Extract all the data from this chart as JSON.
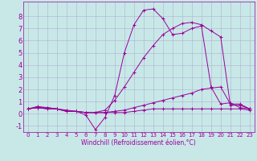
{
  "background_color": "#c8e8e8",
  "grid_color": "#b0b0d0",
  "line_color": "#990099",
  "marker": "+",
  "xlim": [
    -0.5,
    23.5
  ],
  "ylim": [
    -1.5,
    9.2
  ],
  "xticks": [
    0,
    1,
    2,
    3,
    4,
    5,
    6,
    7,
    8,
    9,
    10,
    11,
    12,
    13,
    14,
    15,
    16,
    17,
    18,
    19,
    20,
    21,
    22,
    23
  ],
  "yticks": [
    -1,
    0,
    1,
    2,
    3,
    4,
    5,
    6,
    7,
    8
  ],
  "xlabel": "Windchill (Refroidissement éolien,°C)",
  "lines": [
    [
      0.4,
      0.6,
      0.5,
      0.4,
      0.2,
      0.2,
      -0.1,
      -1.3,
      -0.3,
      1.5,
      5.0,
      7.3,
      8.5,
      8.6,
      7.8,
      6.5,
      6.6,
      7.0,
      7.2,
      2.2,
      0.8,
      0.9,
      0.5,
      0.4
    ],
    [
      0.4,
      0.5,
      0.5,
      0.4,
      0.3,
      0.2,
      0.1,
      0.1,
      0.3,
      1.1,
      2.2,
      3.4,
      4.6,
      5.6,
      6.5,
      7.0,
      7.4,
      7.5,
      7.3,
      6.8,
      6.3,
      0.7,
      0.7,
      0.4
    ],
    [
      0.4,
      0.5,
      0.4,
      0.4,
      0.2,
      0.2,
      0.1,
      0.1,
      0.1,
      0.2,
      0.3,
      0.5,
      0.7,
      0.9,
      1.1,
      1.3,
      1.5,
      1.7,
      2.0,
      2.1,
      2.2,
      0.8,
      0.8,
      0.4
    ],
    [
      0.4,
      0.5,
      0.4,
      0.4,
      0.2,
      0.2,
      0.1,
      0.1,
      0.1,
      0.1,
      0.1,
      0.2,
      0.3,
      0.4,
      0.4,
      0.4,
      0.4,
      0.4,
      0.4,
      0.4,
      0.4,
      0.4,
      0.4,
      0.3
    ]
  ],
  "tick_fontsize_x": 5.0,
  "tick_fontsize_y": 6.0,
  "xlabel_fontsize": 5.5,
  "linewidth": 0.7,
  "markersize": 3,
  "markeredgewidth": 0.7
}
